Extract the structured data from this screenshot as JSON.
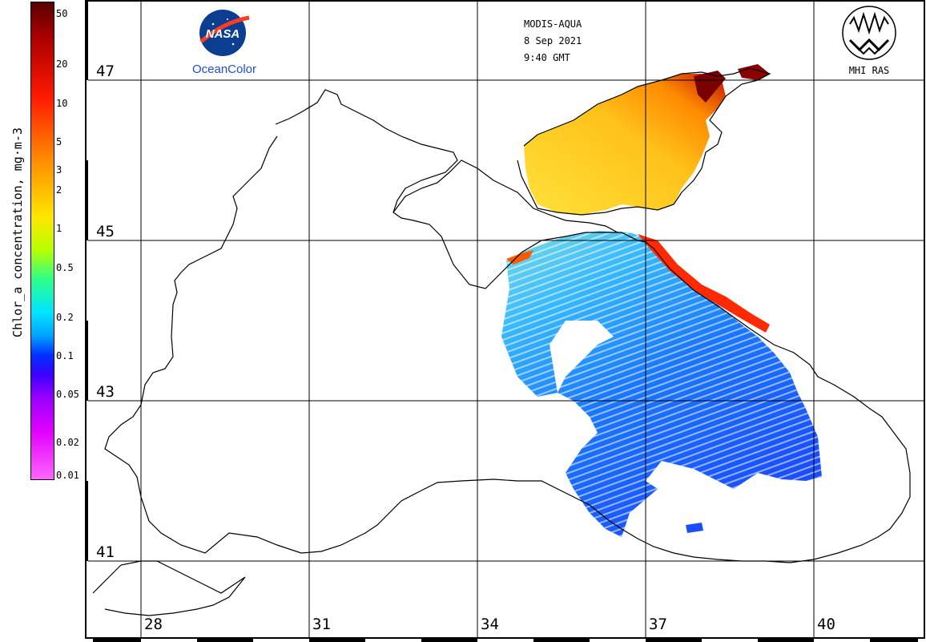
{
  "colorbar": {
    "label": "Chlor_a concentration, mg·m-3",
    "ticks": [
      "50",
      "20",
      "10",
      "5",
      "3",
      "2",
      "1",
      "0.5",
      "0.2",
      "0.1",
      "0.05",
      "0.02",
      "0.01"
    ]
  },
  "header": {
    "sensor": "MODIS-AQUA",
    "date": "8 Sep 2021",
    "time": "9:40 GMT"
  },
  "logos": {
    "nasa_text": "NASA",
    "oceancolor": "OceanColor",
    "mhi": "MHI RAS"
  },
  "grid": {
    "latitudes": [
      "47",
      "45",
      "43",
      "41"
    ],
    "longitudes": [
      "28",
      "31",
      "34",
      "37",
      "40"
    ]
  },
  "colors": {
    "high": "#8b0000",
    "mid": "#ffd21a",
    "low": "#1a4dff",
    "land_line": "#000000",
    "grid_line": "#000000"
  }
}
